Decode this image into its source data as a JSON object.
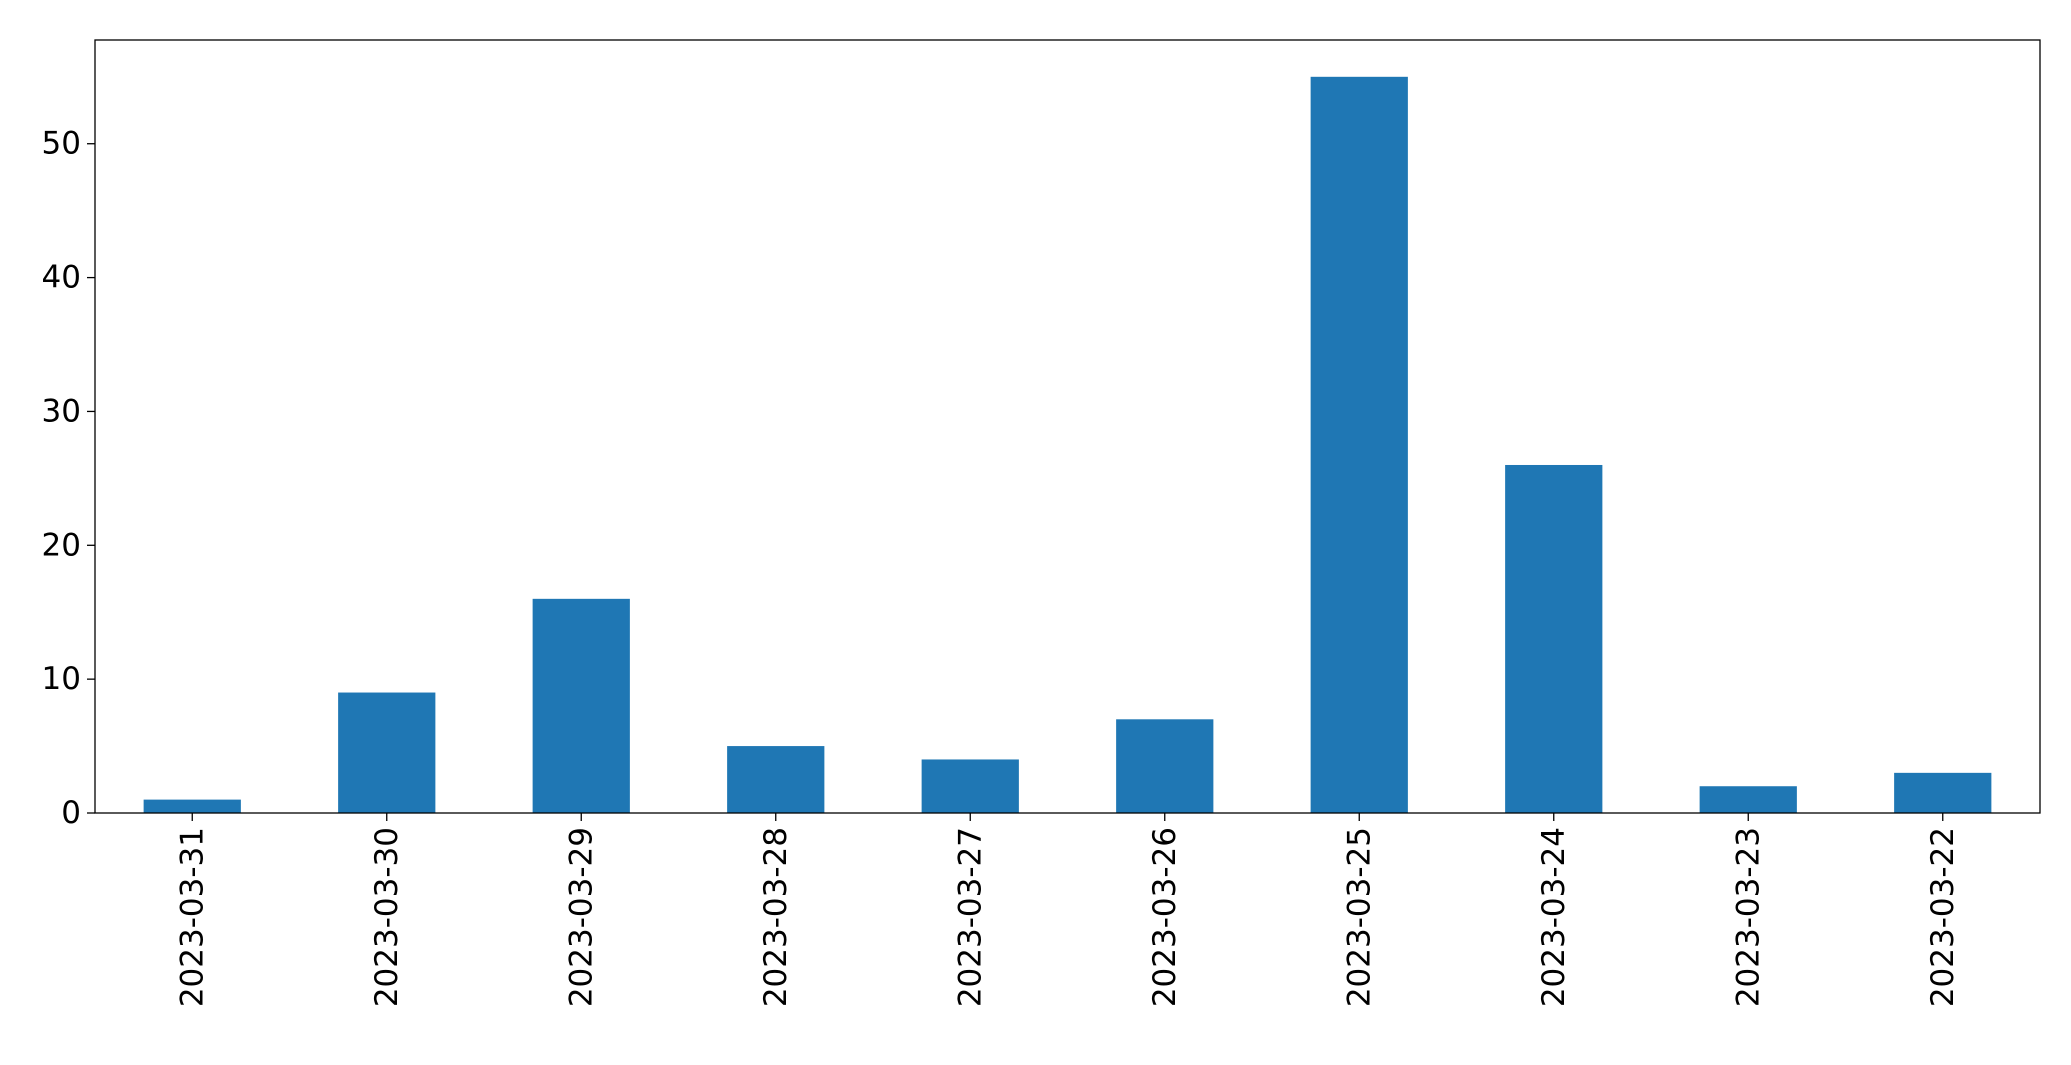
{
  "chart_data": {
    "type": "bar",
    "categories": [
      "2023-03-31",
      "2023-03-30",
      "2023-03-29",
      "2023-03-28",
      "2023-03-27",
      "2023-03-26",
      "2023-03-25",
      "2023-03-24",
      "2023-03-23",
      "2023-03-22"
    ],
    "values": [
      1,
      9,
      16,
      5,
      4,
      7,
      55,
      26,
      2,
      3
    ],
    "title": "",
    "xlabel": "",
    "ylabel": "",
    "ylim": [
      0,
      57.75
    ],
    "yticks": [
      "0",
      "10",
      "20",
      "30",
      "40",
      "50"
    ],
    "grid": false,
    "bar_color": "#1f77b4"
  }
}
